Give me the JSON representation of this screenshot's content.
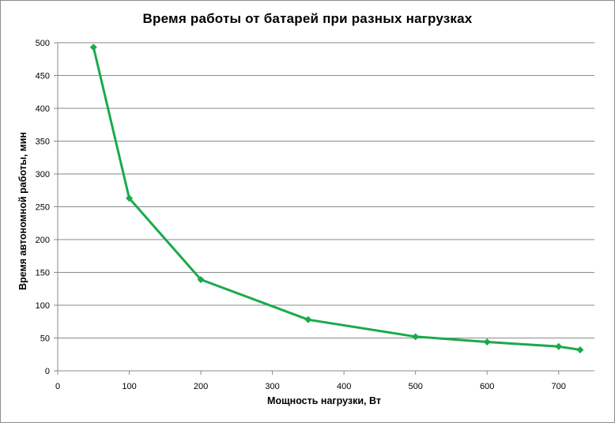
{
  "chart_data": {
    "type": "line",
    "title": "Время работы  от батарей  при разных  нагрузках",
    "xlabel": "Мощность нагрузки, Вт",
    "ylabel": "Время автономной работы, мин",
    "xlim": [
      0,
      750
    ],
    "ylim": [
      0,
      500
    ],
    "xticks": [
      0,
      100,
      200,
      300,
      400,
      500,
      600,
      700
    ],
    "yticks": [
      0,
      50,
      100,
      150,
      200,
      250,
      300,
      350,
      400,
      450,
      500
    ],
    "grid": "horizontal",
    "legend": "none",
    "series": [
      {
        "color": "#1aaa4a",
        "marker": "diamond",
        "x": [
          50,
          100,
          200,
          350,
          500,
          600,
          700,
          730
        ],
        "y": [
          493,
          263,
          139,
          78,
          52,
          44,
          37,
          32
        ]
      }
    ]
  }
}
